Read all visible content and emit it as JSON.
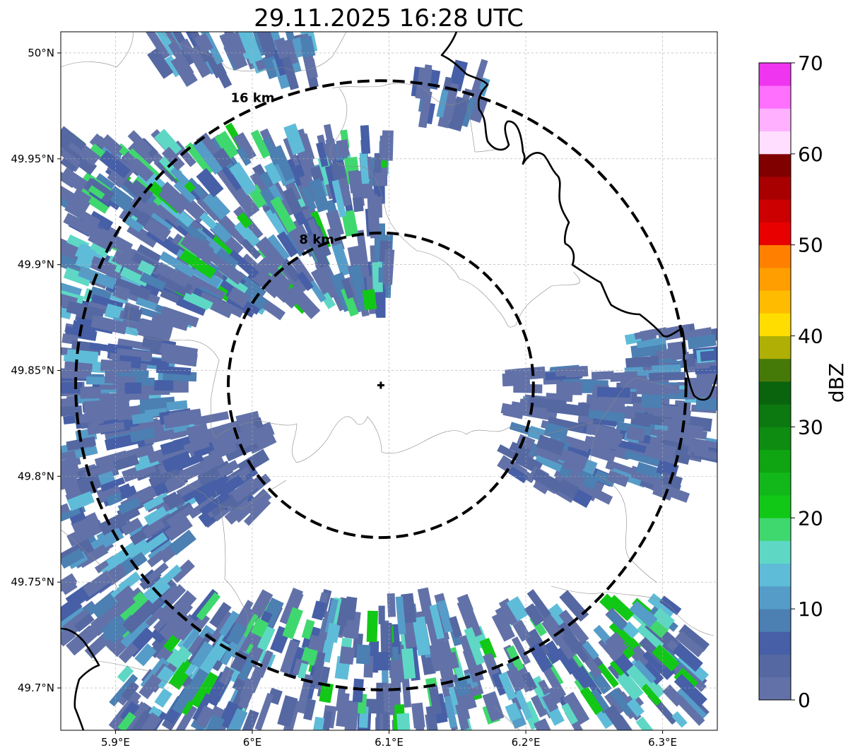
{
  "title": "29.11.2025 16:28 UTC",
  "map": {
    "lon_range": [
      5.86,
      6.34
    ],
    "lat_range": [
      49.68,
      50.01
    ],
    "grid": true,
    "x_ticks": [
      {
        "value": 5.9,
        "label": "5.9°E"
      },
      {
        "value": 6.0,
        "label": "6°E"
      },
      {
        "value": 6.1,
        "label": "6.1°E"
      },
      {
        "value": 6.2,
        "label": "6.2°E"
      },
      {
        "value": 6.3,
        "label": "6.3°E"
      }
    ],
    "y_ticks": [
      {
        "value": 50.0,
        "label": "50°N"
      },
      {
        "value": 49.95,
        "label": "49.95°N"
      },
      {
        "value": 49.9,
        "label": "49.9°N"
      },
      {
        "value": 49.85,
        "label": "49.85°N"
      },
      {
        "value": 49.8,
        "label": "49.8°N"
      },
      {
        "value": 49.75,
        "label": "49.75°N"
      },
      {
        "value": 49.7,
        "label": "49.7°N"
      }
    ],
    "radar_site": {
      "lon": 6.094,
      "lat": 49.843,
      "marker": "plus"
    },
    "range_rings": [
      {
        "radius_km": 8,
        "label": "8 km"
      },
      {
        "radius_km": 16,
        "label": "16 km"
      }
    ],
    "echo_clusters": [
      {
        "name": "north-west band",
        "lon": [
          5.86,
          6.1
        ],
        "lat": [
          49.88,
          49.96
        ],
        "max_dbz": 22
      },
      {
        "name": "north edge",
        "lon": [
          5.93,
          6.05
        ],
        "lat": [
          49.99,
          50.01
        ],
        "max_dbz": 15
      },
      {
        "name": "north-east",
        "lon": [
          6.12,
          6.17
        ],
        "lat": [
          49.97,
          49.99
        ],
        "max_dbz": 12
      },
      {
        "name": "west edge",
        "lon": [
          5.86,
          5.95
        ],
        "lat": [
          49.72,
          49.88
        ],
        "max_dbz": 15
      },
      {
        "name": "east edge",
        "lon": [
          6.28,
          6.34
        ],
        "lat": [
          49.81,
          49.87
        ],
        "max_dbz": 15
      },
      {
        "name": "south band",
        "lon": [
          5.9,
          6.33
        ],
        "lat": [
          49.68,
          49.74
        ],
        "max_dbz": 22
      },
      {
        "name": "scattered east",
        "lon": [
          6.19,
          6.31
        ],
        "lat": [
          49.79,
          49.85
        ],
        "max_dbz": 12
      },
      {
        "name": "scattered west",
        "lon": [
          5.94,
          6.01
        ],
        "lat": [
          49.78,
          49.83
        ],
        "max_dbz": 8
      }
    ]
  },
  "colorbar": {
    "label": "dBZ",
    "min": 0,
    "max": 70,
    "tick_labels": [
      "0",
      "10",
      "20",
      "30",
      "40",
      "50",
      "60",
      "70"
    ],
    "bins": [
      {
        "from": 0,
        "color": "#6272a8"
      },
      {
        "from": 2.5,
        "color": "#5568a1"
      },
      {
        "from": 5,
        "color": "#465fa6"
      },
      {
        "from": 7.5,
        "color": "#4c7fb2"
      },
      {
        "from": 10,
        "color": "#569cc8"
      },
      {
        "from": 12.5,
        "color": "#5fbcd9"
      },
      {
        "from": 15,
        "color": "#5ed8c5"
      },
      {
        "from": 17.5,
        "color": "#3fd86e"
      },
      {
        "from": 20,
        "color": "#12c816"
      },
      {
        "from": 22.5,
        "color": "#12b81a"
      },
      {
        "from": 25,
        "color": "#0fa412"
      },
      {
        "from": 27.5,
        "color": "#0e8c12"
      },
      {
        "from": 30,
        "color": "#0c7810"
      },
      {
        "from": 32.5,
        "color": "#0a640e"
      },
      {
        "from": 35,
        "color": "#467a08"
      },
      {
        "from": 37.5,
        "color": "#afaf06"
      },
      {
        "from": 40,
        "color": "#ffdd00"
      },
      {
        "from": 42.5,
        "color": "#ffbb00"
      },
      {
        "from": 45,
        "color": "#ff9e00"
      },
      {
        "from": 47.5,
        "color": "#ff8000"
      },
      {
        "from": 50,
        "color": "#e80000"
      },
      {
        "from": 52.5,
        "color": "#cc0000"
      },
      {
        "from": 55,
        "color": "#a80000"
      },
      {
        "from": 57.5,
        "color": "#800000"
      },
      {
        "from": 60,
        "color": "#ffdeff"
      },
      {
        "from": 62.5,
        "color": "#ffb0ff"
      },
      {
        "from": 65,
        "color": "#ff70ff"
      },
      {
        "from": 67.5,
        "color": "#f035f0"
      }
    ]
  }
}
